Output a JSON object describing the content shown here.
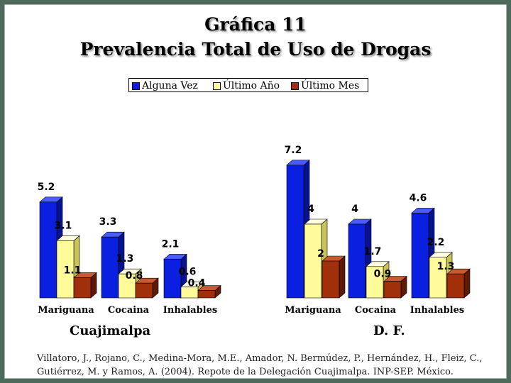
{
  "title": "Gráfica 11",
  "subtitle": "Prevalencia Total de Uso de Drogas",
  "legend": [
    {
      "label": "Alguna Vez",
      "color": "#0a1fe0"
    },
    {
      "label": "Último Año",
      "color": "#fffb9a"
    },
    {
      "label": "Último Mes",
      "color": "#a02f0c"
    }
  ],
  "chart_data": [
    {
      "type": "bar",
      "title": "Cuajimalpa",
      "categories": [
        "Mariguana",
        "Cocaina",
        "Inhalables"
      ],
      "series": [
        {
          "name": "Alguna Vez",
          "values": [
            5.2,
            3.3,
            2.1
          ]
        },
        {
          "name": "Último Año",
          "values": [
            3.1,
            1.3,
            0.6
          ]
        },
        {
          "name": "Último Mes",
          "values": [
            1.1,
            0.8,
            0.4
          ]
        }
      ],
      "value_labels": [
        [
          "5.2",
          "3.3",
          "2.1"
        ],
        [
          "3.1",
          "1.3",
          "0.6"
        ],
        [
          "1.1",
          "0.8",
          "0.4"
        ]
      ],
      "legend_position": "top"
    },
    {
      "type": "bar",
      "title": "D. F.",
      "categories": [
        "Mariguana",
        "Cocaina",
        "Inhalables"
      ],
      "series": [
        {
          "name": "Alguna Vez",
          "values": [
            7.2,
            4,
            4.6
          ]
        },
        {
          "name": "Último Año",
          "values": [
            4,
            1.7,
            2.2
          ]
        },
        {
          "name": "Último Mes",
          "values": [
            2,
            0.9,
            1.3
          ]
        }
      ],
      "value_labels": [
        [
          "7.2",
          "4",
          "4.6"
        ],
        [
          "4",
          "1.7",
          "2.2"
        ],
        [
          "2",
          "0.9",
          "1.3"
        ]
      ],
      "legend_position": "top"
    }
  ],
  "source": "Villatoro, J., Rojano, C., Medina-Mora, M.E., Amador, N. Bermúdez, P., Hernández, H., Fleiz, C., Gutiérrez, M. y Ramos, A. (2004). Repote de la Delegación Cuajimalpa. INP-SEP. México."
}
